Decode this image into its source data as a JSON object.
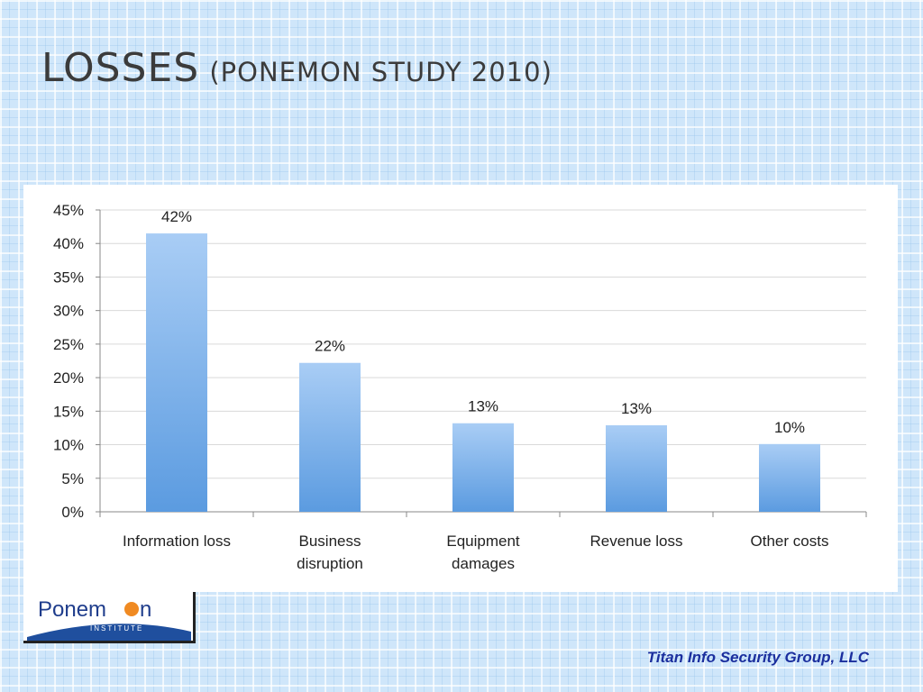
{
  "slide": {
    "title_main": "Losses",
    "title_sub": "(Ponemon study 2010)",
    "footer": "Titan Info Security Group, LLC"
  },
  "logo": {
    "text_left": "Ponem",
    "text_right": "n",
    "subtitle": "INSTITUTE",
    "dot_color": "#f08a22",
    "text_color": "#1f3d8c"
  },
  "chart_data": {
    "type": "bar",
    "title": "",
    "xlabel": "",
    "ylabel": "",
    "categories": [
      [
        "Information loss"
      ],
      [
        "Business",
        "disruption"
      ],
      [
        "Equipment",
        "damages"
      ],
      [
        "Revenue loss"
      ],
      [
        "Other costs"
      ]
    ],
    "values": [
      41.5,
      22.2,
      13.2,
      12.9,
      10.1
    ],
    "data_labels": [
      "42%",
      "22%",
      "13%",
      "13%",
      "10%"
    ],
    "ylim": [
      0,
      45
    ],
    "yticks": [
      0,
      5,
      10,
      15,
      20,
      25,
      30,
      35,
      40,
      45
    ],
    "ytick_labels": [
      "0%",
      "5%",
      "10%",
      "15%",
      "20%",
      "25%",
      "30%",
      "35%",
      "40%",
      "45%"
    ],
    "grid": true,
    "legend": "none",
    "bar_color_top": "#a9cdf5",
    "bar_color_bottom": "#5b9be0"
  }
}
